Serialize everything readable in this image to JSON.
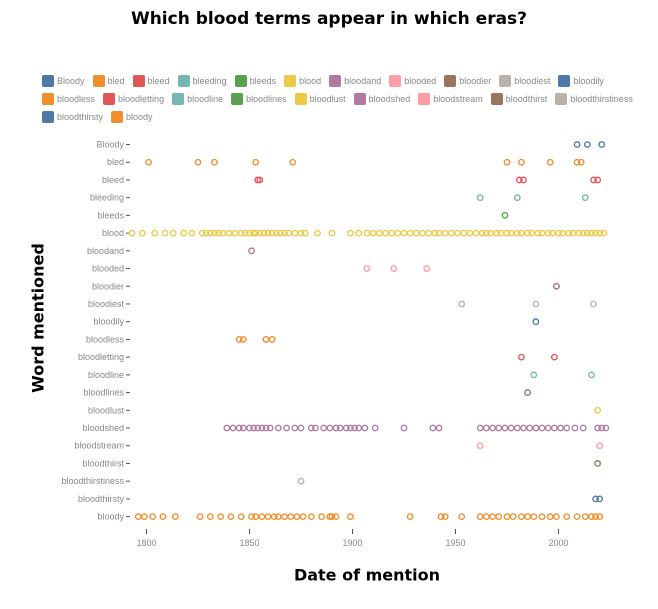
{
  "chart_data": {
    "type": "scatter",
    "title": "Which blood terms appear in which eras?",
    "xlabel": "Date of mention",
    "ylabel": "Word mentioned",
    "xlim": [
      1792,
      2025
    ],
    "x_ticks": [
      1800,
      1850,
      1900,
      1950,
      2000
    ],
    "legend_position": "top",
    "categories": [
      "Bloody",
      "bled",
      "bleed",
      "bleeding",
      "bleeds",
      "blood",
      "bloodand",
      "blooded",
      "bloodier",
      "bloodiest",
      "bloodily",
      "bloodless",
      "bloodletting",
      "bloodline",
      "bloodlines",
      "bloodlust",
      "bloodshed",
      "bloodstream",
      "bloodthirst",
      "bloodthirstiness",
      "bloodthirsty",
      "bloody"
    ],
    "series": [
      {
        "name": "Bloody",
        "color": "#4e79a7",
        "x": [
          2009,
          2014,
          2021
        ]
      },
      {
        "name": "bled",
        "color": "#f28e2b",
        "x": [
          1801,
          1825,
          1833,
          1853,
          1871,
          1975,
          1982,
          1996,
          2009,
          2011
        ]
      },
      {
        "name": "bleed",
        "color": "#e15759",
        "x": [
          1854,
          1855,
          1981,
          1983,
          2017,
          2019
        ]
      },
      {
        "name": "bleeding",
        "color": "#76b7b2",
        "x": [
          1962,
          1980,
          2013
        ]
      },
      {
        "name": "bleeds",
        "color": "#59a14f",
        "x": [
          1974
        ]
      },
      {
        "name": "blood",
        "color": "#edc948",
        "x": [
          1793,
          1798,
          1804,
          1809,
          1813,
          1818,
          1822,
          1827,
          1829,
          1831,
          1833,
          1835,
          1837,
          1840,
          1843,
          1846,
          1848,
          1850,
          1852,
          1853,
          1855,
          1857,
          1859,
          1861,
          1863,
          1865,
          1867,
          1869,
          1872,
          1875,
          1877,
          1883,
          1890,
          1899,
          1903,
          1907,
          1910,
          1913,
          1916,
          1919,
          1922,
          1925,
          1928,
          1931,
          1934,
          1937,
          1940,
          1942,
          1945,
          1948,
          1951,
          1954,
          1957,
          1960,
          1963,
          1965,
          1967,
          1970,
          1972,
          1975,
          1977,
          1980,
          1982,
          1985,
          1987,
          1990,
          1992,
          1995,
          1997,
          2000,
          2002,
          2005,
          2007,
          2010,
          2012,
          2014,
          2016,
          2018,
          2020,
          2022
        ]
      },
      {
        "name": "bloodand",
        "color": "#b07aa1",
        "x": [
          1851
        ]
      },
      {
        "name": "blooded",
        "color": "#ff9da7",
        "x": [
          1907,
          1920,
          1936
        ]
      },
      {
        "name": "bloodier",
        "color": "#9c755f",
        "x": [
          1999
        ]
      },
      {
        "name": "bloodiest",
        "color": "#bab0ac",
        "x": [
          1953,
          1989,
          2017
        ]
      },
      {
        "name": "bloodily",
        "color": "#4e79a7",
        "x": [
          1989
        ]
      },
      {
        "name": "bloodless",
        "color": "#f28e2b",
        "x": [
          1845,
          1847,
          1858,
          1861
        ]
      },
      {
        "name": "bloodletting",
        "color": "#e15759",
        "x": [
          1982,
          1998
        ]
      },
      {
        "name": "bloodline",
        "color": "#76b7b2",
        "x": [
          1988,
          2016
        ]
      },
      {
        "name": "bloodlines",
        "color": "#59a14f",
        "x": [
          1985
        ]
      },
      {
        "name": "bloodlust",
        "color": "#edc948",
        "x": [
          2019
        ]
      },
      {
        "name": "bloodshed",
        "color": "#b07aa1",
        "x": [
          1839,
          1842,
          1845,
          1847,
          1850,
          1852,
          1854,
          1856,
          1858,
          1860,
          1864,
          1868,
          1872,
          1875,
          1880,
          1882,
          1886,
          1889,
          1892,
          1894,
          1897,
          1899,
          1901,
          1903,
          1906,
          1911,
          1925,
          1939,
          1942,
          1962,
          1965,
          1968,
          1971,
          1974,
          1977,
          1980,
          1983,
          1986,
          1989,
          1992,
          1995,
          1998,
          2001,
          2004,
          2008,
          2012,
          2019,
          2021,
          2023
        ]
      },
      {
        "name": "bloodstream",
        "color": "#ff9da7",
        "x": [
          1962,
          2020
        ]
      },
      {
        "name": "bloodthirst",
        "color": "#9c755f",
        "x": [
          2019
        ]
      },
      {
        "name": "bloodthirstiness",
        "color": "#bab0ac",
        "x": [
          1875
        ]
      },
      {
        "name": "bloodthirsty",
        "color": "#4e79a7",
        "x": [
          2018,
          2020
        ]
      },
      {
        "name": "bloody",
        "color": "#f28e2b",
        "x": [
          1796,
          1799,
          1803,
          1808,
          1814,
          1826,
          1831,
          1836,
          1841,
          1846,
          1851,
          1853,
          1856,
          1859,
          1862,
          1864,
          1867,
          1870,
          1873,
          1876,
          1880,
          1885,
          1889,
          1890,
          1892,
          1899,
          1928,
          1943,
          1945,
          1953,
          1962,
          1965,
          1968,
          1971,
          1975,
          1978,
          1982,
          1985,
          1988,
          1992,
          1996,
          1999,
          2004,
          2009,
          2013,
          2016,
          2018,
          2020
        ]
      }
    ]
  }
}
